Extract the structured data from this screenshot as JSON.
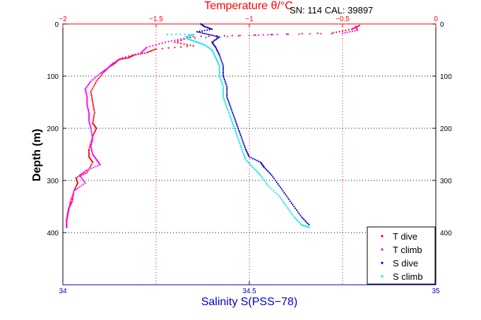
{
  "chart_data": {
    "type": "scatter",
    "title": "Temperature θ/°C",
    "annotation": "SN: 114  CAL: 39897",
    "ylabel": "Depth (m)",
    "xlabel_bottom": "Salinity S(PSS−78)",
    "temperature_axis": {
      "range": [
        -2,
        0
      ],
      "ticks": [
        "−2",
        "−1.5",
        "−1",
        "−0.5",
        "0"
      ],
      "color": "#ff0000"
    },
    "salinity_axis": {
      "range": [
        34,
        35
      ],
      "ticks": [
        "34",
        "34.5",
        "35"
      ],
      "color": "#0000cc"
    },
    "depth_axis": {
      "range": [
        0,
        500
      ],
      "reversed": true,
      "ticks": [
        "0",
        "100",
        "200",
        "300",
        "400"
      ]
    },
    "grid": true,
    "legend_placement": "bottom-right",
    "series": [
      {
        "name": "T dive",
        "axis": "temperature",
        "color": "#ff0000",
        "marker": "dot",
        "points": [
          [
            -0.41,
            3
          ],
          [
            -0.45,
            10
          ],
          [
            -0.55,
            17
          ],
          [
            -1.05,
            22
          ],
          [
            -1.3,
            24
          ],
          [
            -1.4,
            35
          ],
          [
            -1.3,
            42
          ],
          [
            -1.5,
            48
          ],
          [
            -1.55,
            55
          ],
          [
            -1.62,
            60
          ],
          [
            -1.65,
            65
          ],
          [
            -1.7,
            68
          ],
          [
            -1.72,
            75
          ],
          [
            -1.75,
            82
          ],
          [
            -1.78,
            92
          ],
          [
            -1.82,
            110
          ],
          [
            -1.85,
            130
          ],
          [
            -1.84,
            150
          ],
          [
            -1.83,
            170
          ],
          [
            -1.84,
            190
          ],
          [
            -1.82,
            200
          ],
          [
            -1.84,
            215
          ],
          [
            -1.86,
            240
          ],
          [
            -1.86,
            255
          ],
          [
            -1.84,
            265
          ],
          [
            -1.87,
            285
          ],
          [
            -1.93,
            295
          ],
          [
            -1.92,
            305
          ],
          [
            -1.94,
            320
          ],
          [
            -1.95,
            340
          ],
          [
            -1.97,
            355
          ],
          [
            -1.98,
            375
          ],
          [
            -1.98,
            390
          ]
        ]
      },
      {
        "name": "T climb",
        "axis": "temperature",
        "color": "#ff00ff",
        "marker": "dot",
        "points": [
          [
            -0.43,
            5
          ],
          [
            -0.42,
            12
          ],
          [
            -0.5,
            18
          ],
          [
            -0.85,
            20
          ],
          [
            -1.0,
            22
          ],
          [
            -1.35,
            28
          ],
          [
            -1.45,
            35
          ],
          [
            -1.55,
            45
          ],
          [
            -1.58,
            55
          ],
          [
            -1.68,
            65
          ],
          [
            -1.73,
            75
          ],
          [
            -1.76,
            85
          ],
          [
            -1.8,
            95
          ],
          [
            -1.85,
            110
          ],
          [
            -1.88,
            125
          ],
          [
            -1.87,
            140
          ],
          [
            -1.87,
            155
          ],
          [
            -1.86,
            170
          ],
          [
            -1.86,
            185
          ],
          [
            -1.85,
            200
          ],
          [
            -1.84,
            220
          ],
          [
            -1.85,
            235
          ],
          [
            -1.84,
            250
          ],
          [
            -1.82,
            260
          ],
          [
            -1.8,
            270
          ],
          [
            -1.87,
            280
          ],
          [
            -1.91,
            290
          ],
          [
            -1.88,
            305
          ],
          [
            -1.94,
            320
          ],
          [
            -1.96,
            340
          ],
          [
            -1.97,
            360
          ],
          [
            -1.98,
            380
          ],
          [
            -1.98,
            390
          ]
        ]
      },
      {
        "name": "S dive",
        "axis": "salinity",
        "color": "#0000cc",
        "marker": "dot",
        "points": [
          [
            34.37,
            0
          ],
          [
            34.38,
            5
          ],
          [
            34.4,
            10
          ],
          [
            34.36,
            15
          ],
          [
            34.39,
            20
          ],
          [
            34.42,
            25
          ],
          [
            34.4,
            35
          ],
          [
            34.41,
            45
          ],
          [
            34.42,
            60
          ],
          [
            34.43,
            80
          ],
          [
            34.43,
            100
          ],
          [
            34.44,
            120
          ],
          [
            34.44,
            140
          ],
          [
            34.45,
            160
          ],
          [
            34.46,
            180
          ],
          [
            34.47,
            200
          ],
          [
            34.48,
            220
          ],
          [
            34.49,
            240
          ],
          [
            34.5,
            255
          ],
          [
            34.53,
            265
          ],
          [
            34.54,
            275
          ],
          [
            34.56,
            290
          ],
          [
            34.58,
            310
          ],
          [
            34.6,
            330
          ],
          [
            34.62,
            350
          ],
          [
            34.64,
            370
          ],
          [
            34.66,
            385
          ]
        ]
      },
      {
        "name": "S climb",
        "axis": "salinity",
        "color": "#00e5ee",
        "marker": "dot",
        "points": [
          [
            34.28,
            20
          ],
          [
            34.35,
            20
          ],
          [
            34.33,
            25
          ],
          [
            34.34,
            30
          ],
          [
            34.36,
            35
          ],
          [
            34.38,
            40
          ],
          [
            34.4,
            50
          ],
          [
            34.41,
            65
          ],
          [
            34.42,
            80
          ],
          [
            34.42,
            100
          ],
          [
            34.43,
            120
          ],
          [
            34.43,
            140
          ],
          [
            34.44,
            160
          ],
          [
            34.45,
            180
          ],
          [
            34.46,
            200
          ],
          [
            34.47,
            220
          ],
          [
            34.48,
            240
          ],
          [
            34.49,
            260
          ],
          [
            34.51,
            275
          ],
          [
            34.53,
            290
          ],
          [
            34.55,
            310
          ],
          [
            34.58,
            330
          ],
          [
            34.6,
            350
          ],
          [
            34.62,
            370
          ],
          [
            34.64,
            385
          ],
          [
            34.66,
            390
          ]
        ]
      }
    ]
  }
}
